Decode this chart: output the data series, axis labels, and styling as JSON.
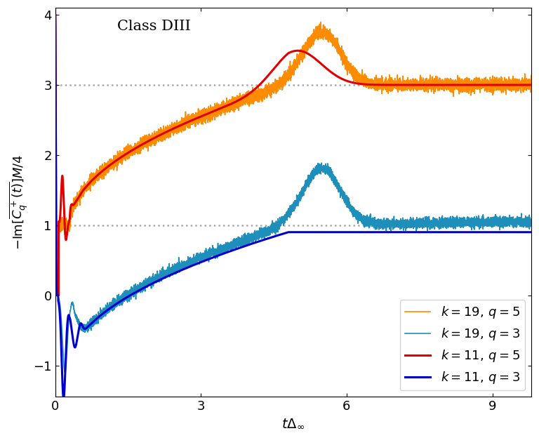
{
  "title": "Class DIII",
  "xlabel": "$t\\Delta_{\\infty}$",
  "ylabel": "$-\\mathrm{Im}[\\overline{C_q^+(t)}]M/4$",
  "xlim": [
    0,
    9.8
  ],
  "ylim": [
    -1.45,
    4.1
  ],
  "xticks": [
    0,
    3,
    6,
    9
  ],
  "yticks": [
    -1,
    0,
    1,
    2,
    3,
    4
  ],
  "hlines": [
    1.0,
    3.0
  ],
  "hline_color": "#aaaaaa",
  "legend_labels": [
    "$k = 19,\\, q = 5$",
    "$k = 19,\\, q = 3$",
    "$k = 11,\\, q = 5$",
    "$k = 11,\\, q = 3$"
  ],
  "line_colors": [
    "#ff8c00",
    "#1e8fba",
    "#e00000",
    "#0000cc"
  ],
  "lw_thin": 1.2,
  "lw_thick": 2.2,
  "noise_k19_q5": 0.045,
  "noise_k19_q3": 0.035,
  "n_points": 8000,
  "t_end": 9.8
}
